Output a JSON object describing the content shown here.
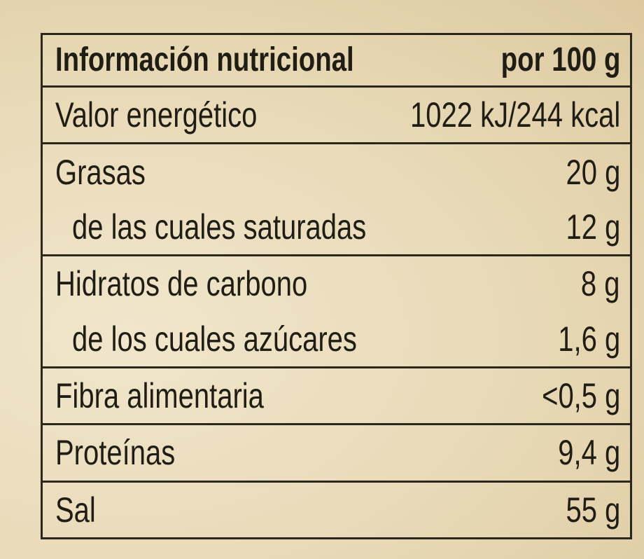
{
  "table": {
    "header": {
      "label": "Información nutricional",
      "unit": "por 100 g"
    },
    "groups": [
      [
        {
          "label": "Valor energético",
          "value": "1022 kJ/244 kcal"
        }
      ],
      [
        {
          "label": "Grasas",
          "value": "20 g"
        },
        {
          "label": "de las cuales saturadas",
          "value": "12 g"
        }
      ],
      [
        {
          "label": "Hidratos de carbono",
          "value": "8 g"
        },
        {
          "label": "de los cuales azúcares",
          "value": "1,6 g"
        }
      ],
      [
        {
          "label": "Fibra alimentaria",
          "value": "<0,5 g"
        }
      ],
      [
        {
          "label": "Proteínas",
          "value": "9,4 g"
        }
      ],
      [
        {
          "label": "Sal",
          "value": "55 g"
        }
      ]
    ]
  }
}
